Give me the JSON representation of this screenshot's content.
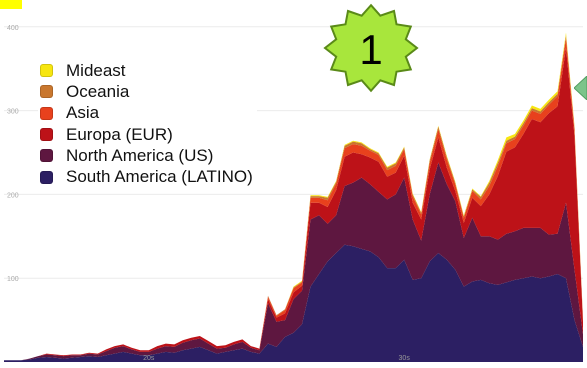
{
  "chart_data": {
    "type": "area",
    "stacked": true,
    "x": [
      0,
      1,
      2,
      3,
      4,
      5,
      6,
      7,
      8,
      9,
      10,
      11,
      12,
      13,
      14,
      15,
      16,
      17,
      18,
      19,
      20,
      21,
      22,
      23,
      24,
      25,
      26,
      27,
      28,
      29,
      30,
      31,
      32,
      33,
      34,
      35,
      36,
      37,
      38,
      39,
      40,
      41,
      42,
      43,
      44,
      45,
      46,
      47,
      48,
      49,
      50,
      51,
      52,
      53,
      54,
      55,
      56,
      57,
      58,
      59,
      60,
      61,
      62,
      63,
      64,
      65,
      66,
      67,
      68
    ],
    "xticks": [
      {
        "x": 17,
        "label": "20s"
      },
      {
        "x": 47,
        "label": "30s"
      }
    ],
    "ylim": [
      0,
      420
    ],
    "yticks": [
      100,
      200,
      300,
      400
    ],
    "grid": true,
    "legend_position": "top-left",
    "series": [
      {
        "name": "South America (LATINO)",
        "color": "#2c1f63",
        "values": [
          2,
          2,
          2,
          3,
          5,
          6,
          5,
          4,
          5,
          6,
          7,
          6,
          8,
          10,
          12,
          10,
          8,
          8,
          10,
          12,
          11,
          14,
          16,
          18,
          14,
          10,
          12,
          14,
          16,
          12,
          10,
          22,
          18,
          30,
          35,
          45,
          90,
          105,
          120,
          130,
          140,
          138,
          135,
          132,
          125,
          112,
          112,
          122,
          98,
          100,
          120,
          130,
          122,
          110,
          90,
          96,
          98,
          94,
          92,
          95,
          98,
          100,
          102,
          100,
          102,
          105,
          100,
          50,
          18
        ]
      },
      {
        "name": "North America (US)",
        "color": "#5e1740",
        "values": [
          0,
          0,
          0,
          1,
          2,
          3,
          3,
          3,
          3,
          2,
          3,
          3,
          5,
          7,
          7,
          5,
          4,
          4,
          6,
          7,
          7,
          9,
          10,
          10,
          8,
          6,
          5,
          7,
          8,
          5,
          4,
          48,
          30,
          20,
          40,
          40,
          80,
          70,
          45,
          45,
          70,
          76,
          85,
          80,
          78,
          82,
          88,
          98,
          72,
          45,
          80,
          108,
          90,
          82,
          58,
          76,
          52,
          56,
          54,
          58,
          58,
          60,
          58,
          60,
          50,
          48,
          90,
          60,
          15
        ]
      },
      {
        "name": "Europa (EUR)",
        "color": "#bd1218",
        "values": [
          0,
          0,
          0,
          0,
          0,
          1,
          1,
          1,
          1,
          1,
          1,
          1,
          2,
          2,
          2,
          2,
          2,
          2,
          3,
          3,
          3,
          3,
          3,
          3,
          3,
          3,
          3,
          3,
          3,
          2,
          2,
          5,
          5,
          8,
          8,
          6,
          20,
          15,
          20,
          30,
          35,
          36,
          28,
          32,
          36,
          27,
          26,
          26,
          20,
          25,
          30,
          30,
          20,
          12,
          18,
          24,
          36,
          50,
          76,
          98,
          100,
          112,
          130,
          126,
          145,
          152,
          185,
          160,
          15
        ]
      },
      {
        "name": "Asia",
        "color": "#e8411d",
        "values": [
          0,
          0,
          0,
          0,
          0,
          0,
          0,
          0,
          0,
          0,
          0,
          0,
          0,
          0,
          0,
          0,
          0,
          0,
          0,
          0,
          0,
          0,
          0,
          0,
          0,
          0,
          0,
          0,
          0,
          0,
          0,
          3,
          2,
          4,
          5,
          4,
          6,
          6,
          8,
          8,
          10,
          10,
          10,
          8,
          8,
          8,
          8,
          8,
          8,
          6,
          8,
          10,
          10,
          8,
          6,
          8,
          8,
          10,
          12,
          10,
          10,
          10,
          10,
          10,
          10,
          12,
          12,
          8,
          2
        ]
      },
      {
        "name": "Oceania",
        "color": "#c9772e",
        "values": [
          0,
          0,
          0,
          0,
          0,
          0,
          0,
          0,
          0,
          0,
          0,
          0,
          0,
          0,
          0,
          0,
          0,
          0,
          0,
          0,
          0,
          0,
          0,
          0,
          0,
          0,
          0,
          0,
          0,
          0,
          0,
          1,
          1,
          1,
          1,
          1,
          2,
          2,
          3,
          2,
          3,
          3,
          3,
          2,
          2,
          3,
          3,
          2,
          2,
          2,
          3,
          3,
          3,
          2,
          2,
          2,
          3,
          4,
          4,
          3,
          3,
          3,
          3,
          3,
          3,
          3,
          3,
          2,
          1
        ]
      },
      {
        "name": "Mideast",
        "color": "#f7e610",
        "values": [
          0,
          0,
          0,
          0,
          0,
          0,
          0,
          0,
          0,
          0,
          0,
          0,
          0,
          0,
          0,
          0,
          0,
          0,
          0,
          0,
          0,
          0,
          0,
          0,
          0,
          0,
          0,
          0,
          0,
          0,
          0,
          0,
          0,
          0,
          1,
          1,
          1,
          1,
          1,
          1,
          1,
          1,
          1,
          1,
          1,
          1,
          1,
          1,
          1,
          1,
          1,
          1,
          1,
          1,
          1,
          1,
          1,
          2,
          3,
          4,
          3,
          3,
          3,
          3,
          3,
          3,
          3,
          2,
          1
        ]
      }
    ]
  },
  "badge": {
    "label": "1"
  }
}
